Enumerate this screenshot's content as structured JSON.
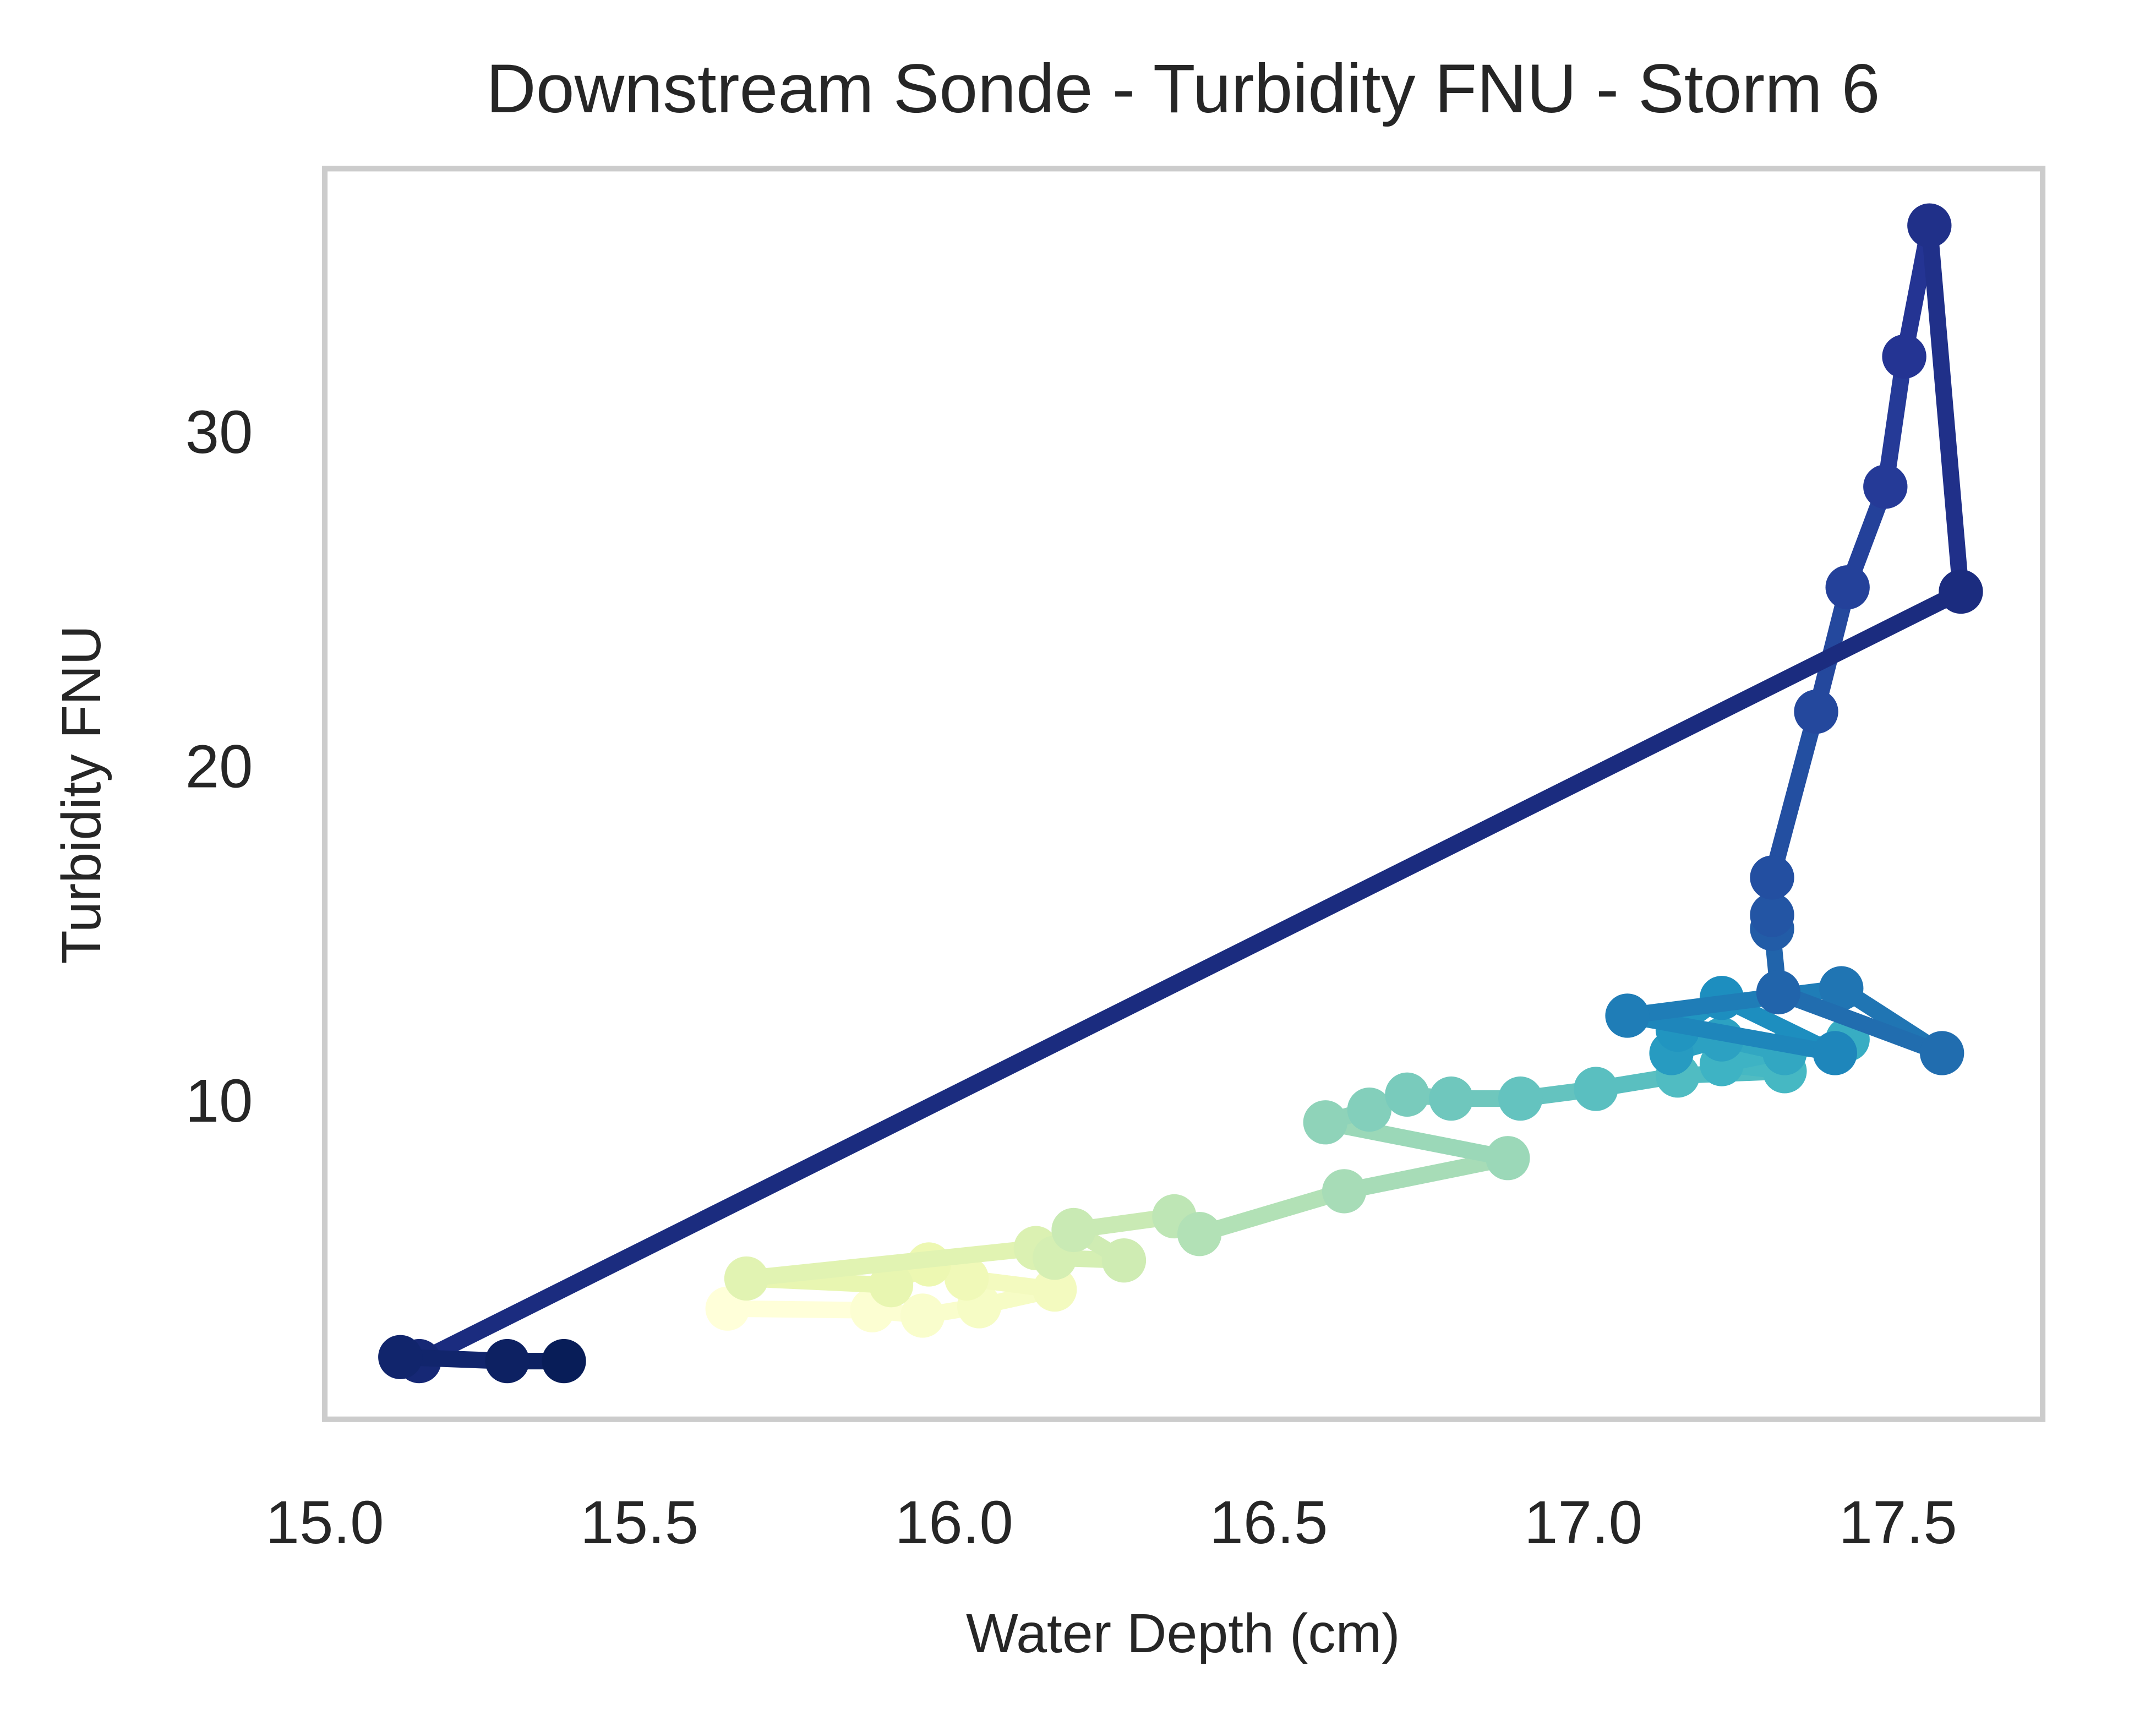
{
  "chart_data": {
    "type": "line",
    "title": "Downstream Sonde - Turbidity FNU - Storm 6",
    "x_label": "Water Depth (cm)",
    "y_label": "Turbidity FNU",
    "x": [
      15.64,
      15.87,
      15.95,
      16.04,
      16.16,
      16.02,
      15.96,
      15.9,
      15.67,
      16.13,
      16.16,
      16.27,
      16.19,
      16.35,
      16.39,
      16.62,
      16.88,
      16.59,
      16.66,
      16.72,
      16.79,
      16.9,
      17.02,
      17.15,
      17.32,
      17.22,
      17.42,
      17.32,
      17.22,
      17.14,
      17.15,
      17.22,
      17.4,
      17.07,
      17.41,
      17.57,
      17.31,
      17.3,
      17.3,
      17.3,
      17.37,
      17.42,
      17.48,
      17.51,
      17.55,
      17.6,
      15.15,
      15.12,
      15.29,
      15.38
    ],
    "values": [
      3.93,
      3.88,
      3.72,
      4.0,
      4.5,
      4.83,
      5.25,
      4.63,
      4.83,
      5.74,
      5.45,
      5.37,
      6.28,
      6.69,
      6.16,
      7.44,
      8.43,
      9.5,
      9.88,
      10.33,
      10.21,
      10.21,
      10.5,
      10.9,
      11.03,
      11.24,
      11.98,
      11.57,
      11.98,
      11.57,
      12.27,
      13.22,
      11.57,
      12.69,
      13.51,
      11.57,
      13.39,
      15.29,
      15.7,
      16.82,
      21.78,
      25.5,
      28.51,
      32.4,
      36.32,
      25.37,
      2.36,
      2.48,
      2.36,
      2.36
    ],
    "colormap": [
      "#ffffd9",
      "#edf8b1",
      "#c7e9b4",
      "#7fcdbb",
      "#41b6c4",
      "#1d91c0",
      "#225ea8",
      "#253494",
      "#081d58"
    ],
    "xlim": [
      15.0,
      17.73
    ],
    "ylim": [
      0.62,
      38.02
    ],
    "xticks": [
      {
        "value": 15.0,
        "label": "15.0"
      },
      15.5,
      {
        "value": 16.0,
        "label": "16.0"
      },
      16.5,
      {
        "value": 17.0,
        "label": "17.0"
      },
      17.5
    ],
    "yticks": [
      10,
      20,
      30
    ],
    "grid": false
  }
}
